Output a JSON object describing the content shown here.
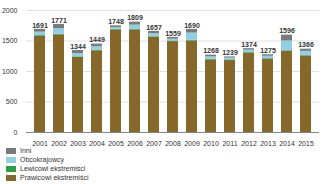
{
  "chart_data": {
    "type": "bar",
    "stacked": true,
    "data_labels": true,
    "grid": true,
    "legend": "bottom-left",
    "categories": [
      "2001",
      "2002",
      "2003",
      "2004",
      "2005",
      "2006",
      "2007",
      "2008",
      "2009",
      "2010",
      "2011",
      "2012",
      "2013",
      "2014",
      "2015"
    ],
    "series": [
      {
        "name": "Prawicowi ekstremiści",
        "color": "#86692a",
        "values": [
          1580,
          1600,
          1230,
          1340,
          1680,
          1680,
          1560,
          1490,
          1500,
          1190,
          1180,
          1300,
          1200,
          1330,
          1250
        ]
      },
      {
        "name": "Lewicowi ekstremiści",
        "color": "#2e9e44",
        "values": [
          10,
          10,
          10,
          10,
          10,
          10,
          10,
          10,
          10,
          10,
          10,
          10,
          10,
          10,
          10
        ]
      },
      {
        "name": "Obcokrajowcy",
        "color": "#8fd0e6",
        "values": [
          55,
          90,
          55,
          55,
          30,
          70,
          50,
          30,
          120,
          40,
          30,
          40,
          40,
          160,
          70
        ]
      },
      {
        "name": "Inni",
        "color": "#7a7a7a",
        "values": [
          46,
          71,
          49,
          44,
          28,
          49,
          37,
          29,
          60,
          28,
          19,
          24,
          25,
          96,
          36
        ]
      }
    ],
    "totals": [
      1691,
      1771,
      1344,
      1449,
      1748,
      1809,
      1657,
      1559,
      1690,
      1268,
      1239,
      1374,
      1275,
      1596,
      1366
    ],
    "ylim": [
      0,
      2000
    ],
    "yticks": [
      0,
      500,
      1000,
      1500,
      2000
    ]
  }
}
